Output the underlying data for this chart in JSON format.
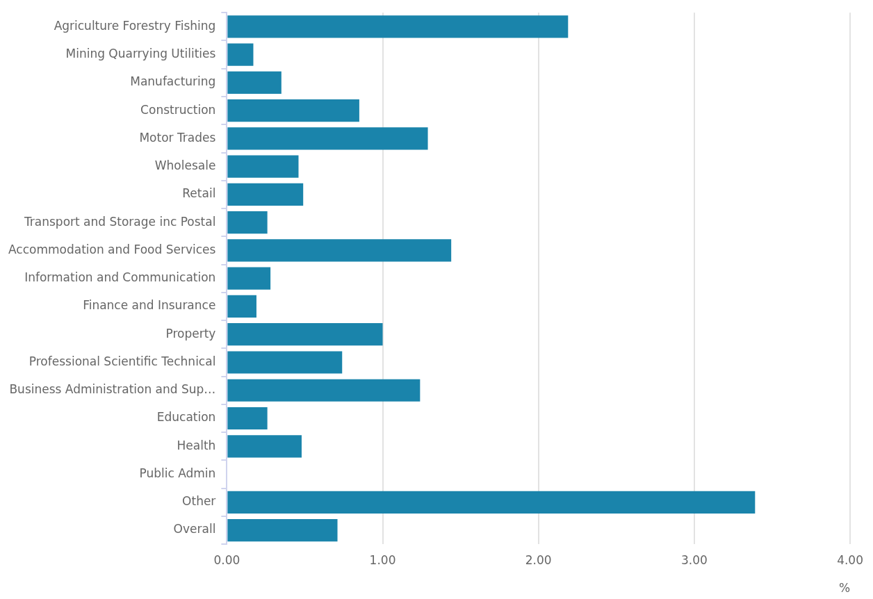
{
  "chart_data": {
    "type": "bar",
    "orientation": "horizontal",
    "xlabel": "%",
    "categories": [
      "Agriculture Forestry Fishing",
      "Mining Quarrying Utilities",
      "Manufacturing",
      "Construction",
      "Motor Trades",
      "Wholesale",
      "Retail",
      "Transport and Storage inc Postal",
      "Accommodation and Food Services",
      "Information and Communication",
      "Finance and Insurance",
      "Property",
      "Professional Scientific Technical",
      "Business Administration and Sup…",
      "Education",
      "Health",
      "Public Admin",
      "Other",
      "Overall"
    ],
    "values": [
      2.19,
      0.17,
      0.35,
      0.85,
      1.29,
      0.46,
      0.49,
      0.26,
      1.44,
      0.28,
      0.19,
      1.0,
      0.74,
      1.24,
      0.26,
      0.48,
      null,
      3.39,
      0.71
    ],
    "color": "#1a84ab",
    "xlim": [
      0,
      4
    ],
    "xticks": [
      {
        "value": 0,
        "label": "0.00"
      },
      {
        "value": 1,
        "label": "1.00"
      },
      {
        "value": 2,
        "label": "2.00"
      },
      {
        "value": 3,
        "label": "3.00"
      },
      {
        "value": 4,
        "label": "4.00"
      }
    ],
    "grid": "x",
    "legend": false
  }
}
